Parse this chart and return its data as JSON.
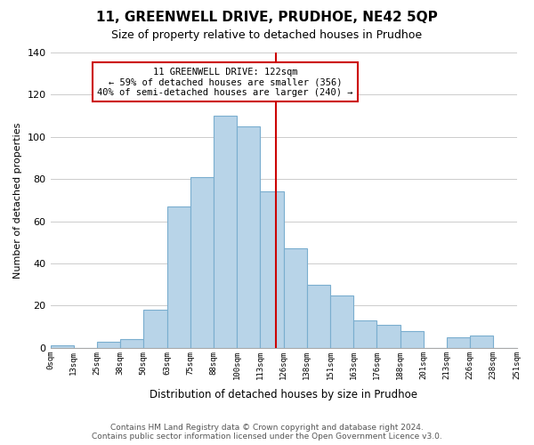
{
  "title": "11, GREENWELL DRIVE, PRUDHOE, NE42 5QP",
  "subtitle": "Size of property relative to detached houses in Prudhoe",
  "xlabel": "Distribution of detached houses by size in Prudhoe",
  "ylabel": "Number of detached properties",
  "bin_labels": [
    "0sqm",
    "13sqm",
    "25sqm",
    "38sqm",
    "50sqm",
    "63sqm",
    "75sqm",
    "88sqm",
    "100sqm",
    "113sqm",
    "126sqm",
    "138sqm",
    "151sqm",
    "163sqm",
    "176sqm",
    "188sqm",
    "201sqm",
    "213sqm",
    "226sqm",
    "238sqm",
    "251sqm"
  ],
  "bar_heights": [
    1,
    0,
    3,
    4,
    18,
    67,
    81,
    110,
    105,
    74,
    47,
    30,
    25,
    13,
    11,
    8,
    0,
    5,
    6,
    0
  ],
  "bar_color": "#b8d4e8",
  "bar_edge_color": "#7aaecf",
  "vline_color": "#cc0000",
  "annotation_line1": "11 GREENWELL DRIVE: 122sqm",
  "annotation_line2": "← 59% of detached houses are smaller (356)",
  "annotation_line3": "40% of semi-detached houses are larger (240) →",
  "annotation_box_color": "#ffffff",
  "annotation_box_edge": "#cc0000",
  "ylim": [
    0,
    140
  ],
  "yticks": [
    0,
    20,
    40,
    60,
    80,
    100,
    120,
    140
  ],
  "footer_line1": "Contains HM Land Registry data © Crown copyright and database right 2024.",
  "footer_line2": "Contains public sector information licensed under the Open Government Licence v3.0.",
  "bg_color": "#ffffff",
  "grid_color": "#cccccc",
  "vline_pos": 9.69
}
